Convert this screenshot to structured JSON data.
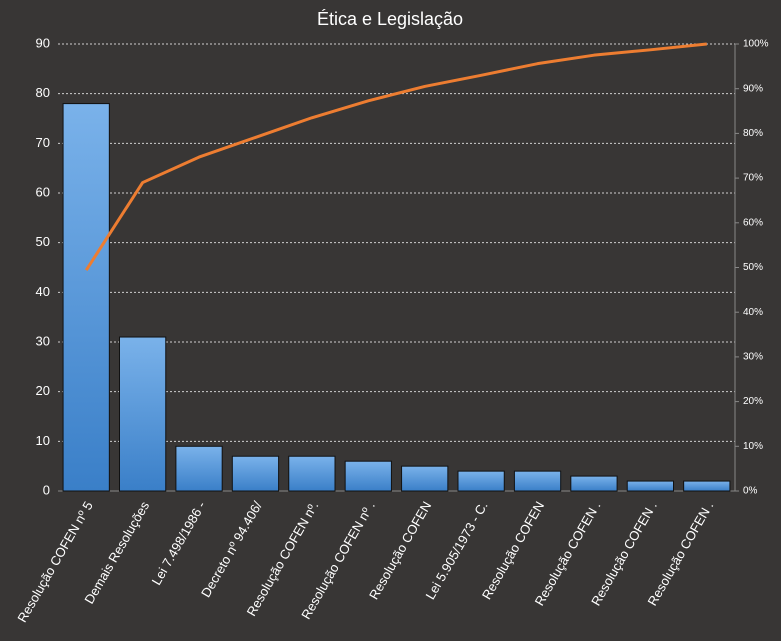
{
  "chart_data": {
    "type": "pareto",
    "title": "Ética e Legislação",
    "categories": [
      "Resolução COFEN nº 5",
      "Demais Resoluções",
      "Lei 7.498/1986 -",
      "Decreto nº 94.406/",
      "Resolução COFEN nº.",
      "Resolução COFEN nº .",
      "Resolução COFEN",
      "Lei 5.905/1973 - C.",
      "Resolução COFEN",
      "Resolução COFEN .",
      "Resolução COFEN .",
      "Resolução COFEN ."
    ],
    "series": [
      {
        "type": "bar",
        "color": "#4a8fd6",
        "values": [
          78,
          31,
          9,
          7,
          7,
          6,
          5,
          4,
          4,
          3,
          2,
          2
        ]
      },
      {
        "type": "line",
        "axis": "y2",
        "color": "#ed7d31",
        "values": [
          49.4,
          69.0,
          74.7,
          79.1,
          83.5,
          87.3,
          90.5,
          93.0,
          95.6,
          97.5,
          98.7,
          100
        ]
      }
    ],
    "ylim": [
      0,
      90
    ],
    "yticks": [
      0,
      10,
      20,
      30,
      40,
      50,
      60,
      70,
      80,
      90
    ],
    "y2lim": [
      0,
      100
    ],
    "y2ticks": [
      {
        "value": 0,
        "label": "0%"
      },
      {
        "value": 10,
        "label": "10%"
      },
      {
        "value": 20,
        "label": "20%"
      },
      {
        "value": 30,
        "label": "30%"
      },
      {
        "value": 40,
        "label": "40%"
      },
      {
        "value": 50,
        "label": "50%"
      },
      {
        "value": 60,
        "label": "60%"
      },
      {
        "value": 70,
        "label": "70%"
      },
      {
        "value": 80,
        "label": "80%"
      },
      {
        "value": 90,
        "label": "90%"
      },
      {
        "value": 100,
        "label": "100%"
      }
    ],
    "grid": true
  }
}
